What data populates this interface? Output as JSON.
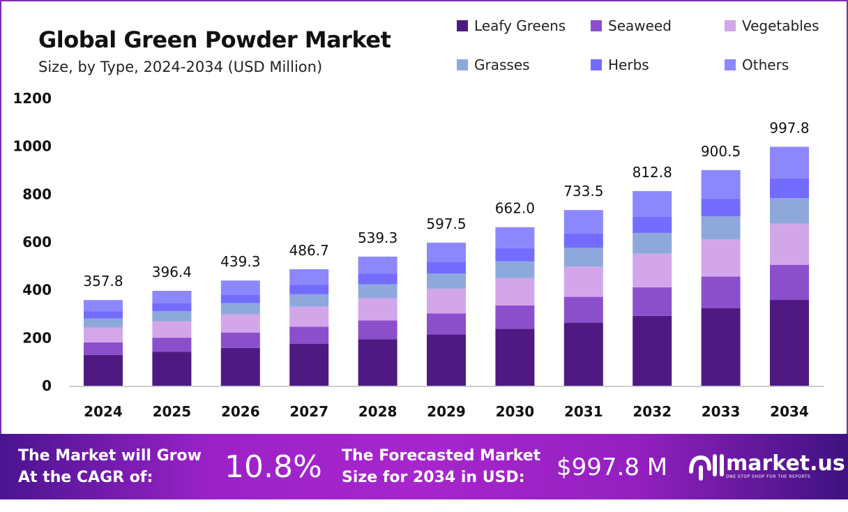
{
  "chart_data": {
    "type": "bar",
    "stacked": true,
    "title": "Global Green Powder Market",
    "subtitle": "Size, by Type, 2024-2034 (USD Million)",
    "categories": [
      "2024",
      "2025",
      "2026",
      "2027",
      "2028",
      "2029",
      "2030",
      "2031",
      "2032",
      "2033",
      "2034"
    ],
    "totals": [
      "357.8",
      "396.4",
      "439.3",
      "486.7",
      "539.3",
      "597.5",
      "662.0",
      "733.5",
      "812.8",
      "900.5",
      "997.8"
    ],
    "ylim": [
      0,
      1200
    ],
    "yticks": [
      "0",
      "200",
      "400",
      "600",
      "800",
      "1000",
      "1200"
    ],
    "grid": false,
    "legend_position": "top-right",
    "series": [
      {
        "name": "Leafy Greens",
        "color": "#4e1a82",
        "values": [
          128.5,
          142.3,
          157.7,
          174.7,
          193.6,
          214.5,
          237.7,
          263.3,
          291.8,
          323.3,
          358.2
        ]
      },
      {
        "name": "Seaweed",
        "color": "#8b4fcc",
        "values": [
          52.6,
          58.3,
          64.6,
          71.5,
          79.3,
          87.8,
          97.3,
          107.8,
          119.5,
          132.4,
          146.7
        ]
      },
      {
        "name": "Vegetables",
        "color": "#d3a6ea",
        "values": [
          61.5,
          68.2,
          75.6,
          83.7,
          92.8,
          102.8,
          113.9,
          126.2,
          139.8,
          154.9,
          171.6
        ]
      },
      {
        "name": "Grasses",
        "color": "#8fa8dc",
        "values": [
          38.3,
          42.4,
          47.0,
          52.1,
          57.7,
          63.9,
          70.8,
          78.5,
          87.0,
          96.4,
          106.8
        ]
      },
      {
        "name": "Herbs",
        "color": "#736cff",
        "values": [
          29.3,
          32.5,
          36.0,
          39.9,
          44.2,
          49.0,
          54.3,
          60.1,
          66.6,
          73.8,
          81.8
        ]
      },
      {
        "name": "Others",
        "color": "#8c88fc",
        "values": [
          47.6,
          52.7,
          58.4,
          64.8,
          71.7,
          79.5,
          88.0,
          97.6,
          108.1,
          119.7,
          132.7
        ]
      }
    ]
  },
  "footer": {
    "cagr_label_1": "The Market will Grow",
    "cagr_label_2": "At the CAGR of:",
    "cagr_value": "10.8%",
    "forecast_label_1": "The Forecasted Market",
    "forecast_label_2": "Size for 2034 in USD:",
    "forecast_value": "$997.8 M",
    "brand": "market.us",
    "tagline": "ONE STOP SHOP FOR THE REPORTS"
  }
}
